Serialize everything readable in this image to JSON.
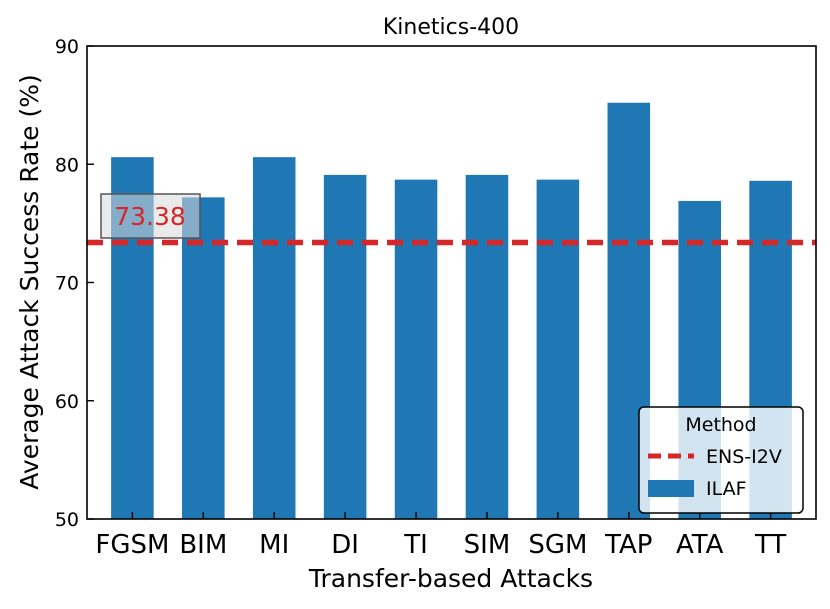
{
  "chart_data": {
    "type": "bar",
    "title": "Kinetics-400",
    "xlabel": "Transfer-based Attacks",
    "ylabel": "Average Attack Success Rate (%)",
    "ylim": [
      50,
      90
    ],
    "yticks": [
      "50",
      "60",
      "70",
      "80",
      "90"
    ],
    "categories": [
      "FGSM",
      "BIM",
      "MI",
      "DI",
      "TI",
      "SIM",
      "SGM",
      "TAP",
      "ATA",
      "TT"
    ],
    "series": [
      {
        "name": "ILAF",
        "color": "#1f77b4",
        "values": [
          80.6,
          77.2,
          80.6,
          79.1,
          78.7,
          79.1,
          78.7,
          85.2,
          76.9,
          78.6
        ]
      }
    ],
    "reference_line": {
      "name": "ENS-I2V",
      "value": 73.38,
      "label": "73.38",
      "color": "#d62728"
    },
    "legend": {
      "title": "Method",
      "position": "lower-right"
    },
    "grid": false
  }
}
